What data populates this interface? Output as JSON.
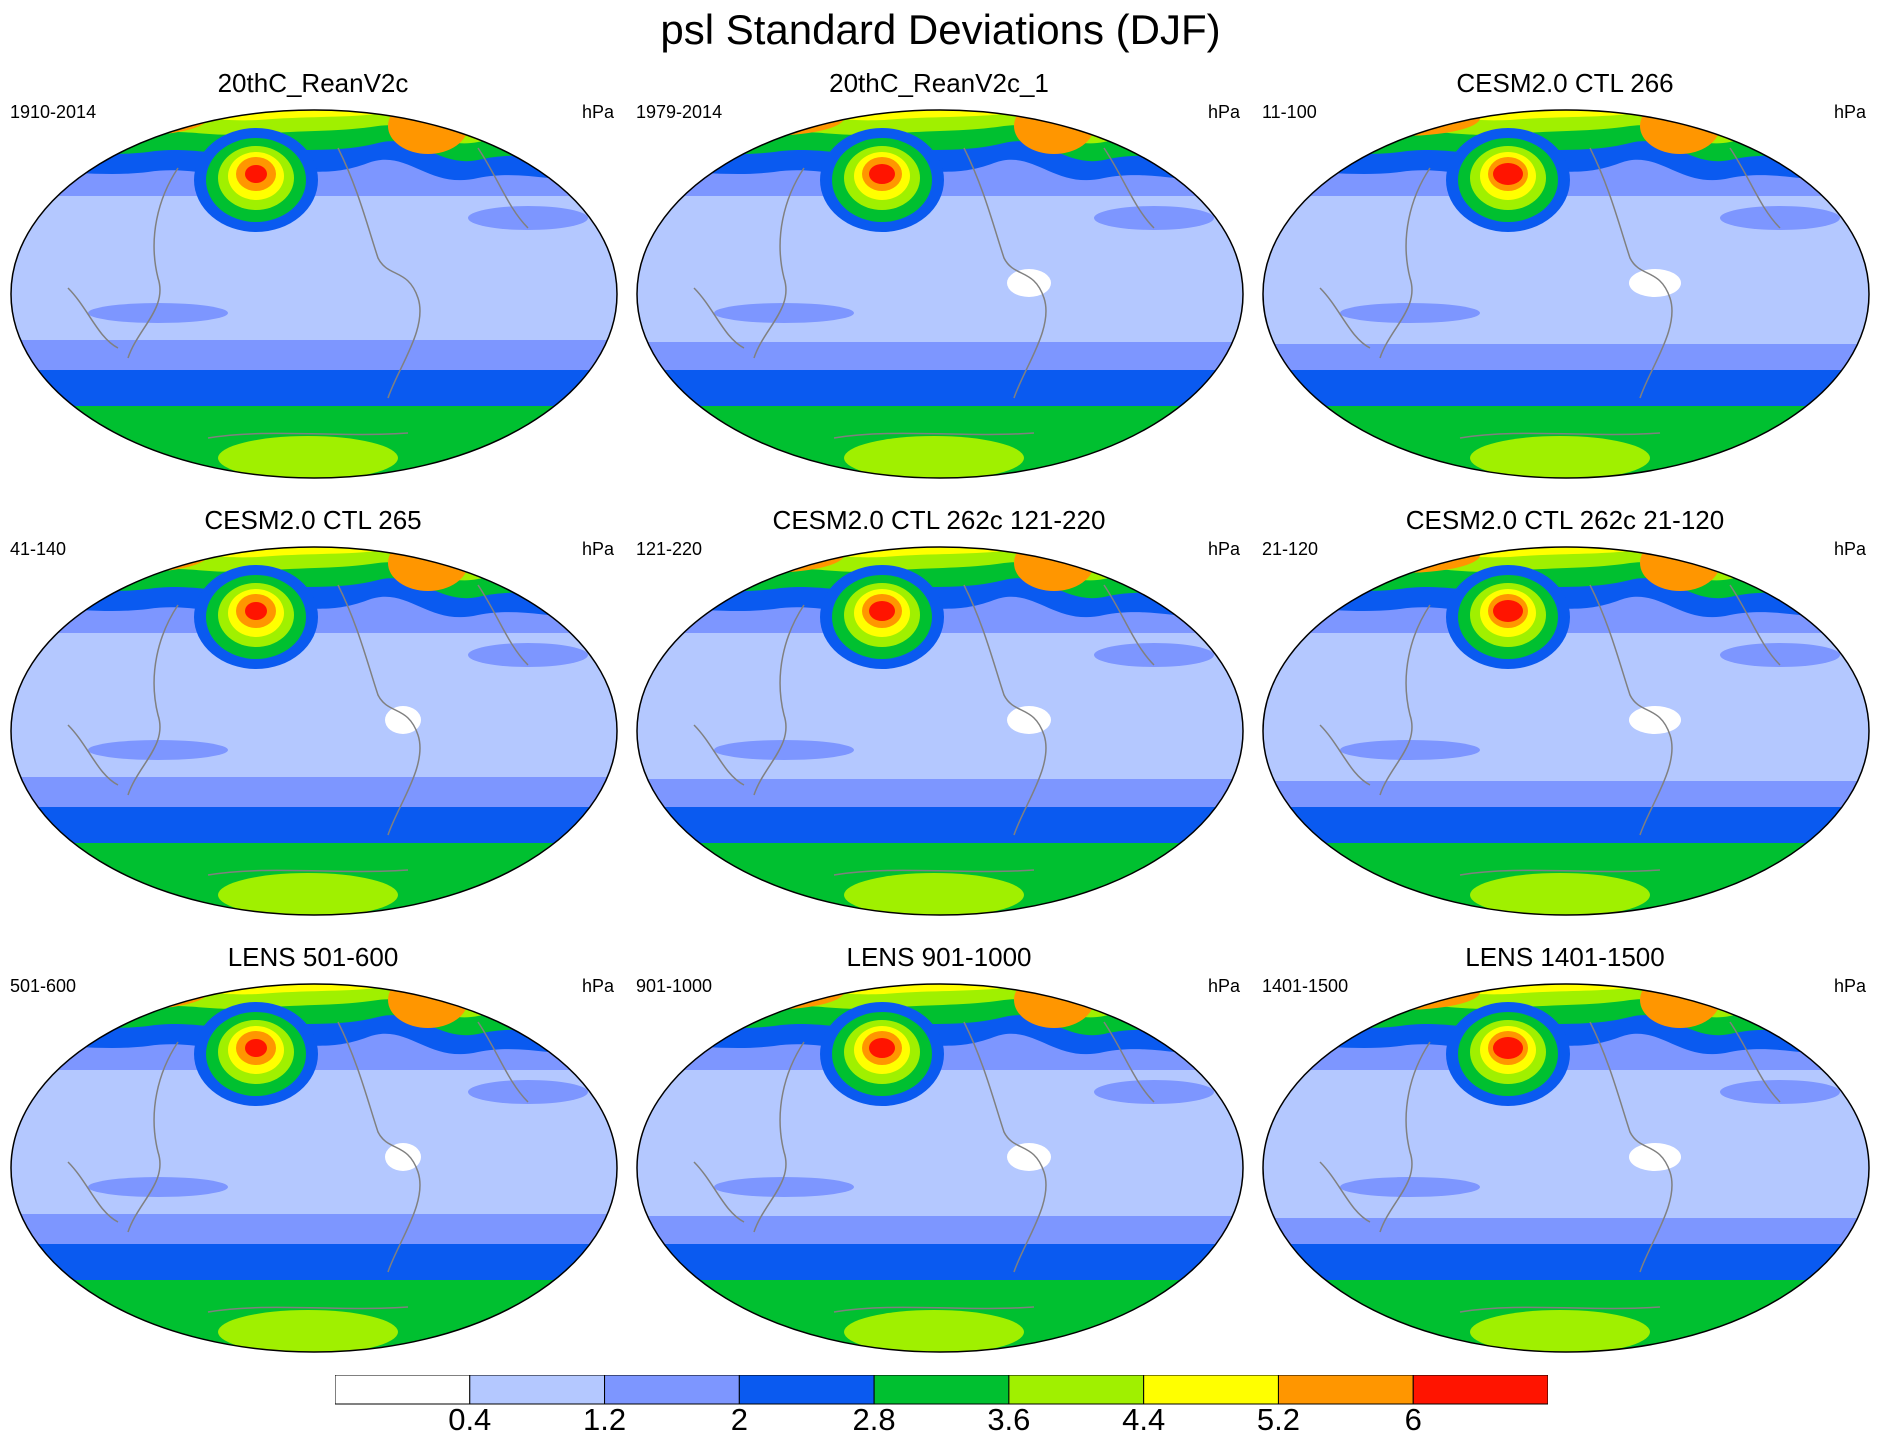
{
  "title": "psl Standard Deviations (DJF)",
  "panels": [
    {
      "title": "20thC_ReanV2c",
      "years": "1910-2014",
      "units": "hPa"
    },
    {
      "title": "20thC_ReanV2c_1",
      "years": "1979-2014",
      "units": "hPa"
    },
    {
      "title": "CESM2.0 CTL 266",
      "years": "11-100",
      "units": "hPa"
    },
    {
      "title": "CESM2.0 CTL 265",
      "years": "41-140",
      "units": "hPa"
    },
    {
      "title": "CESM2.0 CTL 262c 121-220",
      "years": "121-220",
      "units": "hPa"
    },
    {
      "title": "CESM2.0 CTL 262c 21-120",
      "years": "21-120",
      "units": "hPa"
    },
    {
      "title": "LENS 501-600",
      "years": "501-600",
      "units": "hPa"
    },
    {
      "title": "LENS 901-1000",
      "years": "901-1000",
      "units": "hPa"
    },
    {
      "title": "LENS 1401-1500",
      "years": "1401-1500",
      "units": "hPa"
    }
  ],
  "colorbar": {
    "labels": [
      "0.4",
      "1.2",
      "2",
      "2.8",
      "3.6",
      "4.4",
      "5.2",
      "6"
    ],
    "colors": [
      "#ffffff",
      "#b4c8ff",
      "#7d96ff",
      "#0a5af0",
      "#00c030",
      "#a0f000",
      "#ffff00",
      "#ff9600",
      "#ff1400"
    ]
  }
}
